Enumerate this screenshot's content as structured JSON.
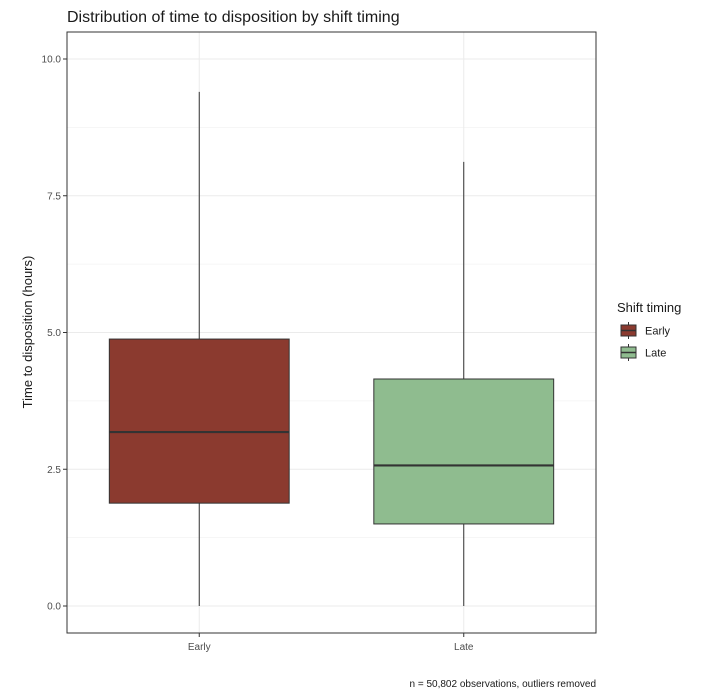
{
  "chart_data": {
    "type": "boxplot",
    "title": "Distribution of time to disposition by shift timing",
    "xlabel": "",
    "ylabel": "Time to disposition (hours)",
    "ylim": [
      0,
      10.5
    ],
    "y_ticks": [
      0.0,
      2.5,
      5.0,
      7.5,
      10.0
    ],
    "y_tick_labels": [
      "0.0",
      "2.5",
      "5.0",
      "7.5",
      "10.0"
    ],
    "categories": [
      "Early",
      "Late"
    ],
    "series": [
      {
        "name": "Early",
        "color": "#8B3A2F",
        "min": 0.0,
        "q1": 1.88,
        "median": 3.18,
        "q3": 4.88,
        "max": 9.4
      },
      {
        "name": "Late",
        "color": "#8FBC8F",
        "min": 0.0,
        "q1": 1.5,
        "median": 2.57,
        "q3": 4.15,
        "max": 8.12
      }
    ],
    "legend": {
      "title": "Shift timing",
      "position": "right",
      "entries": [
        "Early",
        "Late"
      ]
    },
    "caption": "n = 50,802 observations, outliers removed",
    "grid": true,
    "colors": {
      "background": "#ffffff",
      "grid": "#ebebeb",
      "panel_border": "#333333",
      "median_line": "#333333"
    }
  }
}
